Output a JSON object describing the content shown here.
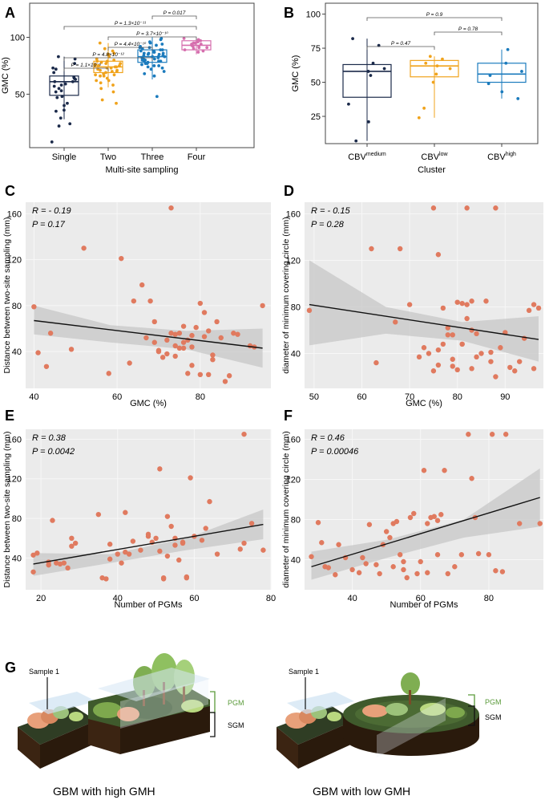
{
  "panel_letters": [
    "A",
    "B",
    "C",
    "D",
    "E",
    "F",
    "G"
  ],
  "colors": {
    "single": "#1b2a4a",
    "two": "#f0a31c",
    "three": "#1b7bbd",
    "four": "#d66fae",
    "scatter": "#e07a5f",
    "panel_bg": "#ebebeb",
    "ci_band": "#c9c9c9",
    "pgm_bracket": "#5a9a3a"
  },
  "chart_data": [
    {
      "id": "A",
      "type": "box",
      "xlabel": "Multi-site sampling",
      "ylabel": "GMC (%)",
      "ylim": [
        3,
        130
      ],
      "yticks": [
        50,
        100
      ],
      "categories": [
        "Single",
        "Two",
        "Three",
        "Four"
      ],
      "series_colors": [
        "single",
        "two",
        "three",
        "four"
      ],
      "boxes": [
        {
          "q1": 49,
          "median": 61,
          "q3": 66,
          "whisker_low": 28,
          "whisker_high": 83
        },
        {
          "q1": 69,
          "median": 74,
          "q3": 79,
          "whisker_low": 56,
          "whisker_high": 95
        },
        {
          "q1": 78,
          "median": 83,
          "q3": 89,
          "whisker_low": 63,
          "whisker_high": 100
        },
        {
          "q1": 89,
          "median": 93,
          "q3": 97,
          "whisker_low": 85,
          "whisker_high": 99
        }
      ],
      "points": [
        [
          64,
          81,
          73,
          53,
          77,
          61,
          29,
          40,
          42,
          47,
          57,
          63,
          58,
          52,
          36,
          83,
          69,
          24,
          22,
          55,
          8,
          65,
          35,
          61,
          48,
          72,
          59
        ],
        [
          75,
          70,
          67,
          81,
          78,
          72,
          74,
          55,
          62,
          88,
          60,
          77,
          95,
          73,
          66,
          80,
          71,
          45,
          52,
          68,
          79,
          83,
          64,
          76,
          70,
          58,
          85,
          73,
          69,
          77,
          90,
          62,
          74,
          42,
          67,
          79,
          71,
          86,
          66,
          75
        ],
        [
          86,
          79,
          91,
          82,
          75,
          88,
          84,
          70,
          95,
          80,
          77,
          89,
          83,
          92,
          73,
          81,
          87,
          98,
          76,
          85,
          90,
          68,
          83,
          79,
          94,
          86,
          72,
          88,
          82,
          78,
          93,
          84,
          80,
          66,
          91,
          87,
          75,
          99,
          85,
          81,
          89,
          77,
          83,
          74,
          96,
          86,
          79,
          48
        ],
        [
          92,
          97,
          89,
          95,
          91,
          99,
          87,
          94,
          93,
          96,
          90,
          92,
          88,
          95,
          98,
          91,
          94
        ]
      ],
      "comparisons": [
        {
          "from": 0,
          "to": 1,
          "label": "P = 1.1×10⁻⁶"
        },
        {
          "from": 0,
          "to": 2,
          "label": "P = 4.8×10⁻¹²"
        },
        {
          "from": 1,
          "to": 2,
          "label": "P = 4.4×10⁻¹⁰"
        },
        {
          "from": 1,
          "to": 3,
          "label": "P = 3.7×10⁻¹⁰"
        },
        {
          "from": 0,
          "to": 3,
          "label": "P = 1.3×10⁻¹¹"
        },
        {
          "from": 2,
          "to": 3,
          "label": "P = 0.017"
        }
      ]
    },
    {
      "id": "B",
      "type": "box",
      "xlabel": "Cluster",
      "ylabel": "GMC (%)",
      "ylim": [
        5,
        108
      ],
      "yticks": [
        25,
        50,
        75,
        100
      ],
      "categories": [
        {
          "base": "CBV",
          "sup": "medium"
        },
        {
          "base": "CBV",
          "sup": "low"
        },
        {
          "base": "CBV",
          "sup": "high"
        }
      ],
      "series_colors": [
        "single",
        "two",
        "three"
      ],
      "boxes": [
        {
          "q1": 39,
          "median": 58,
          "q3": 63,
          "whisker_low": 7,
          "whisker_high": 82
        },
        {
          "q1": 54,
          "median": 62,
          "q3": 66,
          "whisker_low": 24,
          "whisker_high": 69
        },
        {
          "q1": 50,
          "median": 56,
          "q3": 64,
          "whisker_low": 38,
          "whisker_high": 74
        }
      ],
      "points": [
        [
          82,
          77,
          64,
          60,
          58,
          55,
          34,
          21,
          7
        ],
        [
          69,
          67,
          64,
          62,
          60,
          56,
          50,
          31,
          24
        ],
        [
          74,
          64,
          58,
          55,
          49,
          43,
          38
        ]
      ],
      "comparisons": [
        {
          "from": 0,
          "to": 1,
          "label": "P = 0.47"
        },
        {
          "from": 1,
          "to": 2,
          "label": "P = 0.78"
        },
        {
          "from": 0,
          "to": 2,
          "label": "P = 0.9"
        }
      ]
    },
    {
      "id": "C",
      "type": "scatter",
      "xlabel": "GMC (%)",
      "ylabel": "Distance between two-site sampling (mm)",
      "xlim": [
        38,
        97
      ],
      "ylim": [
        8,
        170
      ],
      "xticks": [
        40,
        60,
        80
      ],
      "yticks": [
        40,
        80,
        120,
        160
      ],
      "stat_r": "R = - 0.19",
      "stat_p": "P = 0.17",
      "fit": {
        "x": [
          40,
          95
        ],
        "y": [
          67,
          43
        ]
      },
      "ci_upper": [
        80,
        63,
        58,
        60
      ],
      "ci_lower": [
        55,
        48,
        42,
        26
      ],
      "x": [
        40,
        41,
        43,
        44,
        49,
        52,
        58,
        61,
        63,
        64,
        66,
        67,
        68,
        69,
        70,
        71,
        72,
        73,
        73,
        74,
        74,
        75,
        75,
        76,
        76,
        77,
        77,
        78,
        78,
        79,
        80,
        80,
        81,
        82,
        82,
        83,
        84,
        85,
        86,
        87,
        88,
        89,
        92,
        93,
        95,
        70,
        78,
        72,
        76,
        74,
        81,
        83,
        69
      ],
      "y": [
        79,
        39,
        27,
        56,
        42,
        130,
        21,
        121,
        30,
        84,
        98,
        52,
        84,
        66,
        40,
        35,
        50,
        56,
        165,
        45,
        36,
        43,
        56,
        62,
        48,
        21,
        50,
        54,
        44,
        61,
        20,
        82,
        53,
        20,
        58,
        37,
        66,
        52,
        14,
        19,
        56,
        55,
        45,
        44,
        80,
        41,
        28,
        38,
        43,
        55,
        74,
        33,
        48
      ]
    },
    {
      "id": "D",
      "type": "scatter",
      "xlabel": "GMC (%)",
      "ylabel": "diameter of minimum covering circle (mm)",
      "xlim": [
        48,
        98
      ],
      "ylim": [
        10,
        170
      ],
      "xticks": [
        50,
        60,
        70,
        80,
        90
      ],
      "yticks": [
        40,
        80,
        120,
        160
      ],
      "stat_r": "R = - 0.15",
      "stat_p": "P = 0.28",
      "fit": {
        "x": [
          49,
          97
        ],
        "y": [
          82,
          52
        ]
      },
      "ci_upper": [
        120,
        80,
        67,
        72
      ],
      "ci_lower": [
        47,
        57,
        51,
        33
      ],
      "x": [
        49,
        62,
        63,
        67,
        68,
        70,
        72,
        73,
        74,
        75,
        75,
        76,
        76,
        77,
        77,
        78,
        79,
        79,
        80,
        80,
        81,
        81,
        82,
        82,
        82,
        83,
        83,
        84,
        85,
        86,
        87,
        88,
        88,
        89,
        90,
        91,
        92,
        93,
        94,
        95,
        96,
        96,
        97,
        76,
        84,
        83,
        79,
        87,
        78,
        81
      ],
      "y": [
        77,
        130,
        32,
        67,
        130,
        82,
        37,
        45,
        40,
        165,
        25,
        125,
        43,
        79,
        48,
        56,
        29,
        56,
        84,
        26,
        83,
        48,
        70,
        82,
        165,
        85,
        27,
        57,
        40,
        85,
        33,
        20,
        165,
        45,
        58,
        28,
        25,
        33,
        53,
        77,
        27,
        82,
        79,
        30,
        37,
        60,
        35,
        41,
        62,
        48
      ]
    },
    {
      "id": "E",
      "type": "scatter",
      "xlabel": "Number of PGMs",
      "ylabel": "Distance between two-site sampling (mm)",
      "xlim": [
        16,
        80
      ],
      "ylim": [
        8,
        170
      ],
      "xticks": [
        20,
        40,
        60,
        80
      ],
      "yticks": [
        40,
        80,
        120,
        160
      ],
      "stat_r": "R = 0.38",
      "stat_p": "P = 0.0042",
      "fit": {
        "x": [
          18,
          78
        ],
        "y": [
          34,
          74
        ]
      },
      "ci_upper": [
        45,
        44,
        60,
        89
      ],
      "ci_lower": [
        22,
        35,
        48,
        59
      ],
      "x": [
        18,
        18,
        19,
        22,
        22,
        23,
        24,
        25,
        26,
        27,
        28,
        28,
        29,
        35,
        36,
        37,
        38,
        38,
        40,
        41,
        42,
        42,
        43,
        44,
        46,
        48,
        48,
        49,
        50,
        51,
        51,
        52,
        52,
        53,
        53,
        54,
        55,
        55,
        56,
        57,
        57,
        58,
        58,
        59,
        60,
        62,
        63,
        64,
        66,
        72,
        73,
        73,
        75,
        78
      ],
      "y": [
        26,
        43,
        45,
        36,
        33,
        78,
        35,
        34,
        35,
        30,
        52,
        60,
        55,
        84,
        20,
        19,
        39,
        54,
        44,
        35,
        86,
        46,
        44,
        57,
        48,
        64,
        62,
        56,
        60,
        130,
        47,
        20,
        19,
        82,
        42,
        72,
        60,
        53,
        38,
        56,
        55,
        20,
        21,
        121,
        62,
        58,
        70,
        97,
        44,
        49,
        165,
        55,
        75,
        48
      ]
    },
    {
      "id": "F",
      "type": "scatter",
      "xlabel": "Number of PGMs",
      "ylabel": "diameter of minimum covering circle (mm)",
      "xlim": [
        26,
        96
      ],
      "ylim": [
        10,
        170
      ],
      "xticks": [
        40,
        60,
        80
      ],
      "yticks": [
        40,
        80,
        120,
        160
      ],
      "stat_r": "R = 0.46",
      "stat_p": "P = 0.00046",
      "fit": {
        "x": [
          28,
          95
        ],
        "y": [
          33,
          102
        ]
      },
      "ci_upper": [
        48,
        60,
        80,
        131
      ],
      "ci_lower": [
        20,
        42,
        62,
        73
      ],
      "x": [
        28,
        30,
        31,
        32,
        33,
        35,
        36,
        38,
        40,
        42,
        43,
        44,
        45,
        47,
        48,
        49,
        50,
        51,
        52,
        52,
        53,
        54,
        55,
        55,
        56,
        57,
        58,
        59,
        60,
        61,
        62,
        62,
        63,
        64,
        65,
        66,
        67,
        68,
        70,
        72,
        74,
        75,
        76,
        80,
        81,
        82,
        84,
        85,
        89,
        95,
        77,
        65
      ],
      "y": [
        43,
        77,
        57,
        33,
        32,
        25,
        55,
        42,
        30,
        27,
        42,
        36,
        75,
        35,
        26,
        55,
        68,
        62,
        33,
        76,
        78,
        45,
        30,
        38,
        22,
        82,
        86,
        26,
        38,
        129,
        27,
        76,
        82,
        83,
        79,
        85,
        129,
        26,
        33,
        45,
        165,
        121,
        82,
        45,
        165,
        29,
        28,
        165,
        76,
        76,
        46,
        45
      ]
    }
  ],
  "illustration": {
    "left_sample": "Sample 1",
    "left_pgm": "PGM",
    "left_sgm": "SGM",
    "left_caption": "GBM with high GMH",
    "right_sample": "Sample 1",
    "right_pgm": "PGM",
    "right_sgm": "SGM",
    "right_caption": "GBM with low GMH"
  }
}
